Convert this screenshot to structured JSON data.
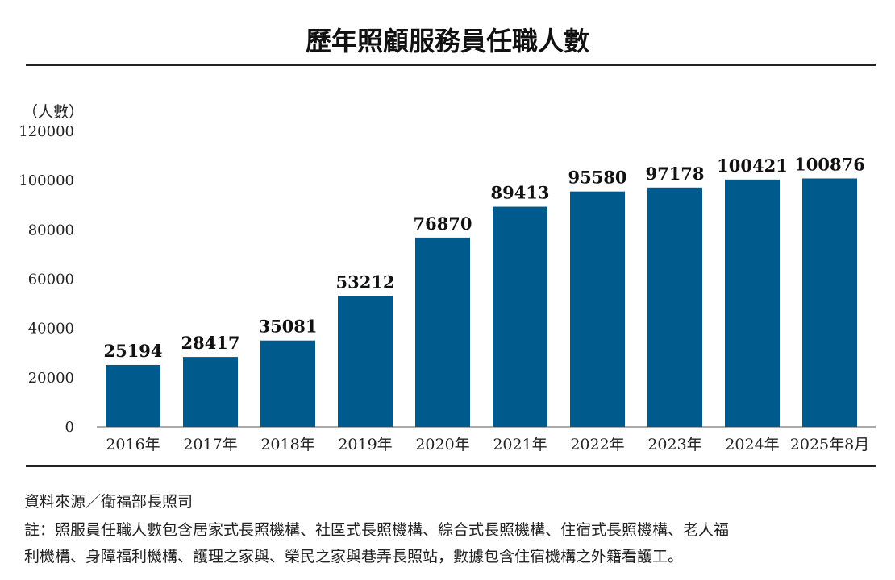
{
  "chart_data": {
    "type": "bar",
    "title": "歷年照顧服務員任職人數",
    "ylabel": "（人數）",
    "xlabel": "",
    "categories": [
      "2016年",
      "2017年",
      "2018年",
      "2019年",
      "2020年",
      "2021年",
      "2022年",
      "2023年",
      "2024年",
      "2025年8月"
    ],
    "values": [
      25194,
      28417,
      35081,
      53212,
      76870,
      89413,
      95580,
      97178,
      100421,
      100876
    ],
    "ylim": [
      0,
      120000
    ],
    "yticks": [
      0,
      20000,
      40000,
      60000,
      80000,
      100000,
      120000
    ],
    "grid": false,
    "legend": "none",
    "bar_color": "#005a8b",
    "data_labels": true
  },
  "footer": {
    "source": "資料來源／衛福部長照司",
    "note_line1": "註：照服員任職人數包含居家式長照機構、社區式長照機構、綜合式長照機構、住宿式長照機構、老人福",
    "note_line2": "利機構、身障福利機構、護理之家與、榮民之家與巷弄長照站，數據包含住宿機構之外籍看護工。"
  }
}
